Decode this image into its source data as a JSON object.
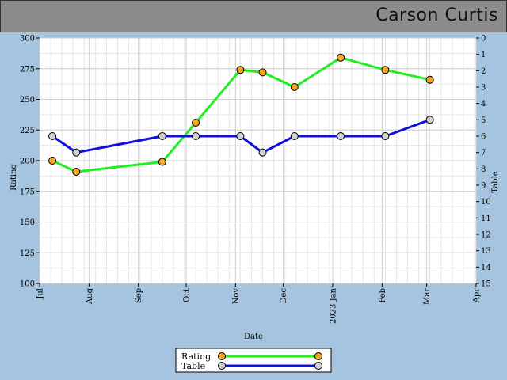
{
  "header": {
    "player_name": "Carson Curtis"
  },
  "chart_data": {
    "type": "line",
    "xlabel": "Date",
    "ylabel_left": "Rating",
    "ylabel_right": "Table",
    "ylim_left": [
      100,
      300
    ],
    "ylim_right": [
      0,
      15
    ],
    "right_axis_inverted": true,
    "left_ticks": [
      100,
      125,
      150,
      175,
      200,
      225,
      250,
      275,
      300
    ],
    "right_ticks": [
      0,
      1,
      2,
      3,
      4,
      5,
      6,
      7,
      8,
      9,
      10,
      11,
      12,
      13,
      14,
      15
    ],
    "x_range": [
      "2022-07-01",
      "2023-04-01"
    ],
    "x_ticks": [
      {
        "date": "2022-07-01",
        "label": "Jul"
      },
      {
        "date": "2022-08-01",
        "label": "Aug"
      },
      {
        "date": "2022-09-01",
        "label": "Sep"
      },
      {
        "date": "2022-10-01",
        "label": "Oct"
      },
      {
        "date": "2022-11-01",
        "label": "Nov"
      },
      {
        "date": "2022-12-01",
        "label": "Dec"
      },
      {
        "date": "2023-01-01",
        "label": "2023 Jan"
      },
      {
        "date": "2023-02-01",
        "label": "Feb"
      },
      {
        "date": "2023-03-01",
        "label": "Mar"
      },
      {
        "date": "2023-04-01",
        "label": "Apr"
      }
    ],
    "grid": true,
    "legend_position": "bottom-center",
    "series": [
      {
        "name": "Rating",
        "axis": "left",
        "line_color": "#22ee22",
        "marker_color": "#f5a623",
        "points": [
          {
            "x": "2022-07-09",
            "y": 200
          },
          {
            "x": "2022-07-24",
            "y": 191
          },
          {
            "x": "2022-09-16",
            "y": 199
          },
          {
            "x": "2022-10-07",
            "y": 231
          },
          {
            "x": "2022-11-04",
            "y": 274
          },
          {
            "x": "2022-11-18",
            "y": 272
          },
          {
            "x": "2022-12-08",
            "y": 260
          },
          {
            "x": "2023-01-06",
            "y": 284
          },
          {
            "x": "2023-02-03",
            "y": 274
          },
          {
            "x": "2023-03-03",
            "y": 266
          }
        ]
      },
      {
        "name": "Table",
        "axis": "right",
        "line_color": "#1010dd",
        "marker_color": "#d0d0d0",
        "points": [
          {
            "x": "2022-07-09",
            "y": 6
          },
          {
            "x": "2022-07-24",
            "y": 7
          },
          {
            "x": "2022-09-16",
            "y": 6
          },
          {
            "x": "2022-10-07",
            "y": 6
          },
          {
            "x": "2022-11-04",
            "y": 6
          },
          {
            "x": "2022-11-18",
            "y": 7
          },
          {
            "x": "2022-12-08",
            "y": 6
          },
          {
            "x": "2023-01-06",
            "y": 6
          },
          {
            "x": "2023-02-03",
            "y": 6
          },
          {
            "x": "2023-03-03",
            "y": 5
          }
        ]
      }
    ]
  }
}
